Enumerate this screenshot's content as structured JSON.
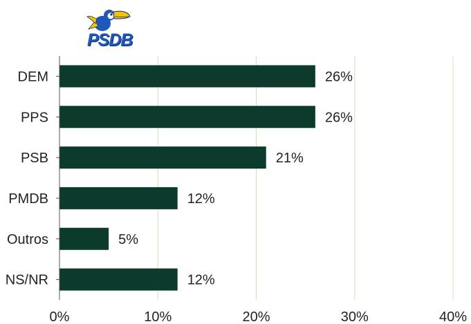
{
  "logo": {
    "text": "PSDB",
    "icon": "toucan-icon"
  },
  "colors": {
    "bar": "#0c3b2e",
    "grid": "#dcdcb8",
    "axis": "#555555",
    "text": "#222222",
    "logo": "#1f58b8"
  },
  "chart_data": {
    "type": "bar",
    "orientation": "horizontal",
    "categories": [
      "DEM",
      "PPS",
      "PSB",
      "PMDB",
      "Outros",
      "NS/NR"
    ],
    "values": [
      26,
      26,
      21,
      12,
      5,
      12
    ],
    "value_labels": [
      "26%",
      "26%",
      "21%",
      "12%",
      "5%",
      "12%"
    ],
    "x_ticks": [
      0,
      10,
      20,
      30,
      40
    ],
    "x_tick_labels": [
      "0%",
      "10%",
      "20%",
      "30%",
      "40%"
    ],
    "xlim": [
      0,
      40
    ],
    "grid": true,
    "legend": "none"
  }
}
